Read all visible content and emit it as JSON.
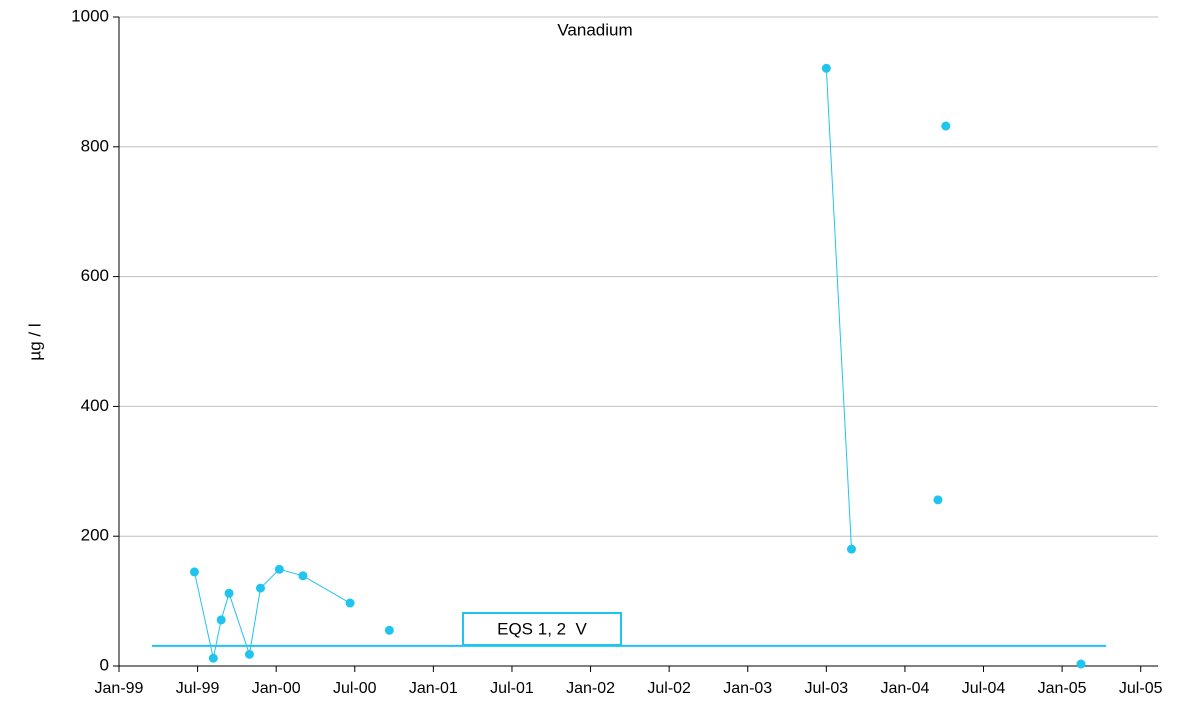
{
  "chart_data": {
    "type": "line",
    "title": "Vanadium",
    "y_label": "µg / l",
    "xlim": [
      1999,
      2005.61
    ],
    "ylim": [
      0,
      1000
    ],
    "yticks": [
      0,
      200,
      400,
      600,
      800,
      1000
    ],
    "xticks": [
      {
        "value": 1999.0,
        "label": "Jan-99"
      },
      {
        "value": 1999.5,
        "label": "Jul-99"
      },
      {
        "value": 2000.0,
        "label": "Jan-00"
      },
      {
        "value": 2000.5,
        "label": "Jul-00"
      },
      {
        "value": 2001.0,
        "label": "Jan-01"
      },
      {
        "value": 2001.5,
        "label": "Jul-01"
      },
      {
        "value": 2002.0,
        "label": "Jan-02"
      },
      {
        "value": 2002.5,
        "label": "Jul-02"
      },
      {
        "value": 2003.0,
        "label": "Jan-03"
      },
      {
        "value": 2003.5,
        "label": "Jul-03"
      },
      {
        "value": 2004.0,
        "label": "Jan-04"
      },
      {
        "value": 2004.5,
        "label": "Jul-04"
      },
      {
        "value": 2005.0,
        "label": "Jan-05"
      },
      {
        "value": 2005.5,
        "label": "Jul-05"
      }
    ],
    "grid": true,
    "series": [
      {
        "name": "Vanadium",
        "color": "#21c4ee",
        "markers": true,
        "x": [
          1999.48,
          1999.6,
          1999.65,
          1999.7,
          1999.83,
          1999.9,
          2000.02,
          2000.17,
          2000.47,
          null,
          2000.72,
          null,
          2003.5,
          2003.66,
          null,
          2004.21,
          null,
          2004.26,
          null,
          2005.12
        ],
        "values": [
          145,
          12,
          71,
          112,
          18,
          120,
          149,
          139,
          97,
          null,
          55,
          null,
          921,
          180,
          null,
          256,
          null,
          832,
          null,
          3
        ]
      },
      {
        "name": "EQS 1, 2  V",
        "color": "#21c4ee",
        "markers": false,
        "x": [
          1999.21,
          2005.28
        ],
        "values": [
          31,
          31
        ]
      }
    ]
  }
}
